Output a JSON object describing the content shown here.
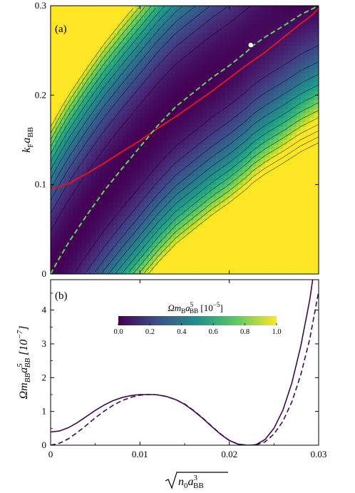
{
  "figure": {
    "panel_a_label": "(a)",
    "panel_b_label": "(b)"
  },
  "chart_data": [
    {
      "type": "heatmap",
      "panel": "(a)",
      "xlabel": "",
      "ylabel": "kFaBB",
      "ylabel_parts": {
        "main": "k",
        "sub_main": "F",
        "mid": "a",
        "sub_mid": "BB"
      },
      "xlim": [
        0,
        0.03
      ],
      "ylim": [
        0,
        0.3
      ],
      "y_ticks": [
        0,
        0.1,
        0.2,
        0.3
      ],
      "y_tick_labels": [
        "0",
        "0.1",
        "0.2",
        "0.3"
      ],
      "colormap": "viridis",
      "colorbar": {
        "label": "Ωm_B a^5_BB [10^-5]",
        "label_parts": {
          "a": "Ωm",
          "sub_a": "B",
          "b": "a",
          "sup_b": "5",
          "sub_b": "BB",
          "c": "  [10",
          "sup_c": "−5",
          "d": "]"
        },
        "range": [
          0,
          1.0
        ],
        "ticks": [
          0.0,
          0.2,
          0.4,
          0.6,
          0.8,
          1.0
        ],
        "tick_labels": [
          "0.0",
          "0.2",
          "0.4",
          "0.6",
          "0.8",
          "1.0"
        ]
      },
      "series": [
        {
          "style": "solid",
          "color": "#e0141e",
          "points": [
            [
              0,
              0.095
            ],
            [
              0.002,
              0.101
            ],
            [
              0.004,
              0.112
            ],
            [
              0.006,
              0.124
            ],
            [
              0.008,
              0.137
            ],
            [
              0.01,
              0.149
            ],
            [
              0.012,
              0.163
            ],
            [
              0.014,
              0.176
            ],
            [
              0.016,
              0.19
            ],
            [
              0.018,
              0.204
            ],
            [
              0.02,
              0.219
            ],
            [
              0.022,
              0.234
            ],
            [
              0.024,
              0.248
            ],
            [
              0.026,
              0.264
            ],
            [
              0.028,
              0.28
            ],
            [
              0.0292,
              0.289
            ],
            [
              0.03,
              0.297
            ]
          ]
        },
        {
          "style": "dashed",
          "color": "#5ed65e",
          "points": [
            [
              0,
              0
            ],
            [
              0.001,
              0.018
            ],
            [
              0.002,
              0.035
            ],
            [
              0.004,
              0.065
            ],
            [
              0.006,
              0.093
            ],
            [
              0.008,
              0.118
            ],
            [
              0.01,
              0.142
            ],
            [
              0.012,
              0.166
            ],
            [
              0.014,
              0.187
            ],
            [
              0.016,
              0.203
            ],
            [
              0.018,
              0.219
            ],
            [
              0.02,
              0.233
            ],
            [
              0.022,
              0.249
            ],
            [
              0.0226,
              0.255
            ],
            [
              0.024,
              0.265
            ],
            [
              0.026,
              0.277
            ],
            [
              0.028,
              0.29
            ],
            [
              0.03,
              0.3
            ]
          ]
        }
      ],
      "marker": {
        "x": 0.0224,
        "y": 0.256,
        "color": "#ffffff"
      }
    },
    {
      "type": "line",
      "panel": "(b)",
      "xlabel": "√(n0 a^3_BB)",
      "xlabel_parts": {
        "a": "n",
        "sub_a": "0",
        "b": "a",
        "sup_b": "3",
        "sub_b": "BB"
      },
      "ylabel": "Ωm_BB a^5_BB [10^-7]",
      "ylabel_parts": {
        "a": "Ωm",
        "sub_a": "BB",
        "b": "a",
        "sup_b": "5",
        "sub_b": "BB",
        "c": "  [10",
        "sup_c": "−7",
        "d": "]"
      },
      "xlim": [
        0,
        0.03
      ],
      "ylim": [
        0,
        4.9
      ],
      "x_ticks": [
        0,
        0.01,
        0.02,
        0.03
      ],
      "x_tick_labels": [
        "0",
        "0.01",
        "0.02",
        "0.03"
      ],
      "y_ticks": [
        0,
        1,
        2,
        3,
        4
      ],
      "y_tick_labels": [
        "0",
        "1",
        "2",
        "3",
        "4"
      ],
      "series": [
        {
          "style": "solid",
          "color": "#3d0a4f",
          "x": [
            0,
            0.001,
            0.002,
            0.003,
            0.004,
            0.005,
            0.006,
            0.007,
            0.008,
            0.009,
            0.01,
            0.011,
            0.0115,
            0.012,
            0.013,
            0.014,
            0.015,
            0.016,
            0.017,
            0.018,
            0.019,
            0.02,
            0.021,
            0.022,
            0.0225,
            0.023,
            0.024,
            0.025,
            0.026,
            0.027,
            0.028,
            0.029,
            0.0295,
            0.03
          ],
          "y": [
            0.39,
            0.42,
            0.52,
            0.67,
            0.85,
            1.03,
            1.19,
            1.32,
            1.41,
            1.47,
            1.5,
            1.5,
            1.5,
            1.49,
            1.44,
            1.35,
            1.21,
            1.02,
            0.8,
            0.56,
            0.33,
            0.14,
            0.03,
            0.0,
            0.0,
            0.02,
            0.17,
            0.5,
            1.04,
            1.84,
            2.93,
            4.3,
            5.2,
            6.0
          ]
        },
        {
          "style": "dashed",
          "color": "#3d0a4f",
          "x": [
            0,
            0.001,
            0.002,
            0.003,
            0.004,
            0.005,
            0.006,
            0.007,
            0.008,
            0.009,
            0.01,
            0.011,
            0.0115,
            0.012,
            0.013,
            0.014,
            0.015,
            0.016,
            0.017,
            0.018,
            0.019,
            0.02,
            0.021,
            0.022,
            0.0225,
            0.023,
            0.024,
            0.025,
            0.026,
            0.027,
            0.028,
            0.029,
            0.03
          ],
          "y": [
            0.0,
            0.06,
            0.19,
            0.38,
            0.59,
            0.81,
            1.01,
            1.18,
            1.32,
            1.42,
            1.48,
            1.5,
            1.5,
            1.49,
            1.44,
            1.35,
            1.22,
            1.03,
            0.81,
            0.57,
            0.34,
            0.14,
            0.03,
            0.0,
            0.0,
            0.01,
            0.1,
            0.33,
            0.71,
            1.28,
            2.08,
            3.14,
            4.55
          ]
        }
      ]
    }
  ]
}
